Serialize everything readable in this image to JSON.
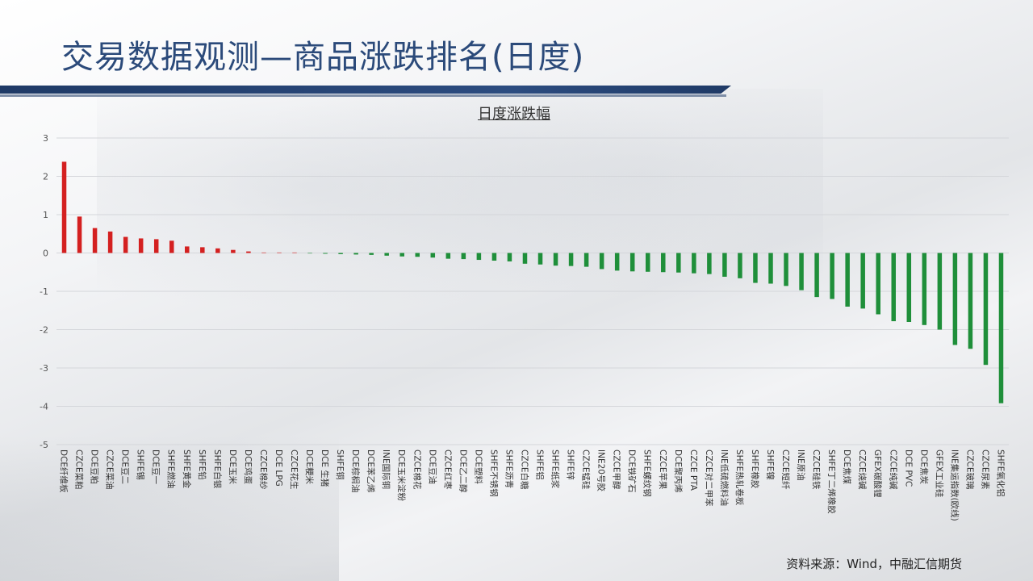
{
  "title": "交易数据观测—商品涨跌排名(日度)",
  "source": "资料来源：Wind，中融汇信期货",
  "colors": {
    "up": "#d42020",
    "down": "#1f8f3a",
    "title": "#2b4a7a",
    "band": "#1f3a66"
  },
  "chart_data": {
    "type": "bar",
    "title": "日度涨跌幅",
    "xlabel": "",
    "ylabel": "",
    "ylim": [
      -5,
      3
    ],
    "yticks": [
      3,
      2,
      1,
      0,
      -1,
      -2,
      -3,
      -4,
      -5
    ],
    "grid": true,
    "categories": [
      "DCE纤维板",
      "CZCE菜粕",
      "DCE豆粕",
      "CZCE菜油",
      "DCE豆二",
      "SHFE锡",
      "DCE豆一",
      "SHFE燃油",
      "SHFE黄金",
      "SHFE铅",
      "SHFE白银",
      "DCE玉米",
      "DCE鸡蛋",
      "CZCE棉纱",
      "DCE LPG",
      "CZCE花生",
      "DCE粳米",
      "DCE 生猪",
      "SHFE铜",
      "DCE棕榈油",
      "DCE苯乙烯",
      "INE国际铜",
      "DCE玉米淀粉",
      "CZCE棉花",
      "DCE豆油",
      "CZCE红枣",
      "DCE乙二醇",
      "DCE塑料",
      "SHFE不锈钢",
      "SHFE沥青",
      "CZCE白糖",
      "SHFE铝",
      "SHFE纸浆",
      "SHFE锌",
      "CZCE锰硅",
      "INE20号胶",
      "CZCE甲醇",
      "DCE铁矿石",
      "SHFE螺纹钢",
      "CZCE苹果",
      "DCE聚丙烯",
      "CZCE PTA",
      "CZCE对二甲苯",
      "INE低硫燃料油",
      "SHFE热轧卷板",
      "SHFE橡胶",
      "SHFE镍",
      "CZCE短纤",
      "INE原油",
      "CZCE硅铁",
      "SHFE丁二烯橡胶",
      "DCE焦煤",
      "CZCE烧碱",
      "GFEX碳酸锂",
      "CZCE纯碱",
      "DCE PVC",
      "DCE焦炭",
      "GFEX工业硅",
      "INE集运指数(欧线)",
      "CZCE玻璃",
      "CZCE尿素",
      "SHFE氧化铝"
    ],
    "values": [
      2.38,
      0.95,
      0.65,
      0.56,
      0.42,
      0.38,
      0.36,
      0.32,
      0.17,
      0.15,
      0.12,
      0.08,
      0.04,
      0.01,
      0.0,
      0.0,
      -0.01,
      -0.02,
      -0.03,
      -0.04,
      -0.05,
      -0.07,
      -0.09,
      -0.1,
      -0.12,
      -0.15,
      -0.16,
      -0.18,
      -0.2,
      -0.22,
      -0.28,
      -0.3,
      -0.33,
      -0.34,
      -0.36,
      -0.42,
      -0.46,
      -0.48,
      -0.49,
      -0.5,
      -0.51,
      -0.53,
      -0.55,
      -0.62,
      -0.66,
      -0.78,
      -0.8,
      -0.86,
      -0.97,
      -1.15,
      -1.2,
      -1.4,
      -1.45,
      -1.6,
      -1.78,
      -1.8,
      -1.88,
      -2.0,
      -2.4,
      -2.5,
      -2.92,
      -3.92
    ]
  }
}
